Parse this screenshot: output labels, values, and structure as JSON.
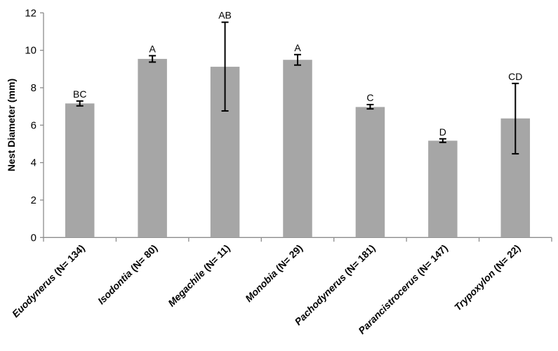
{
  "chart_data": {
    "type": "bar",
    "title": "",
    "xlabel": "",
    "ylabel": "Nest Diameter (mm)",
    "ylim": [
      0,
      12
    ],
    "yticks": [
      0,
      2,
      4,
      6,
      8,
      10,
      12
    ],
    "grid": false,
    "bar_color": "#a6a6a6",
    "categories": [
      {
        "genus": "Euodynerus",
        "n": "(N= 134)"
      },
      {
        "genus": "Isodontia",
        "n": "(N= 80)"
      },
      {
        "genus": "Megachile",
        "n": "(N= 11)"
      },
      {
        "genus": "Monobia",
        "n": "(N= 29)"
      },
      {
        "genus": "Pachodynerus",
        "n": "(N= 181)"
      },
      {
        "genus": "Parancistrocerus",
        "n": "(N= 147)"
      },
      {
        "genus": "Trypoxylon",
        "n": "(N= 22)"
      }
    ],
    "values": [
      7.16,
      9.54,
      9.12,
      9.49,
      6.97,
      5.17,
      6.36
    ],
    "error_low": [
      7.03,
      9.37,
      6.76,
      9.21,
      6.87,
      5.08,
      4.47
    ],
    "error_high": [
      7.29,
      9.71,
      11.5,
      9.77,
      7.1,
      5.27,
      8.23
    ],
    "significance_letters": [
      "BC",
      "A",
      "AB",
      "A",
      "C",
      "D",
      "CD"
    ]
  }
}
